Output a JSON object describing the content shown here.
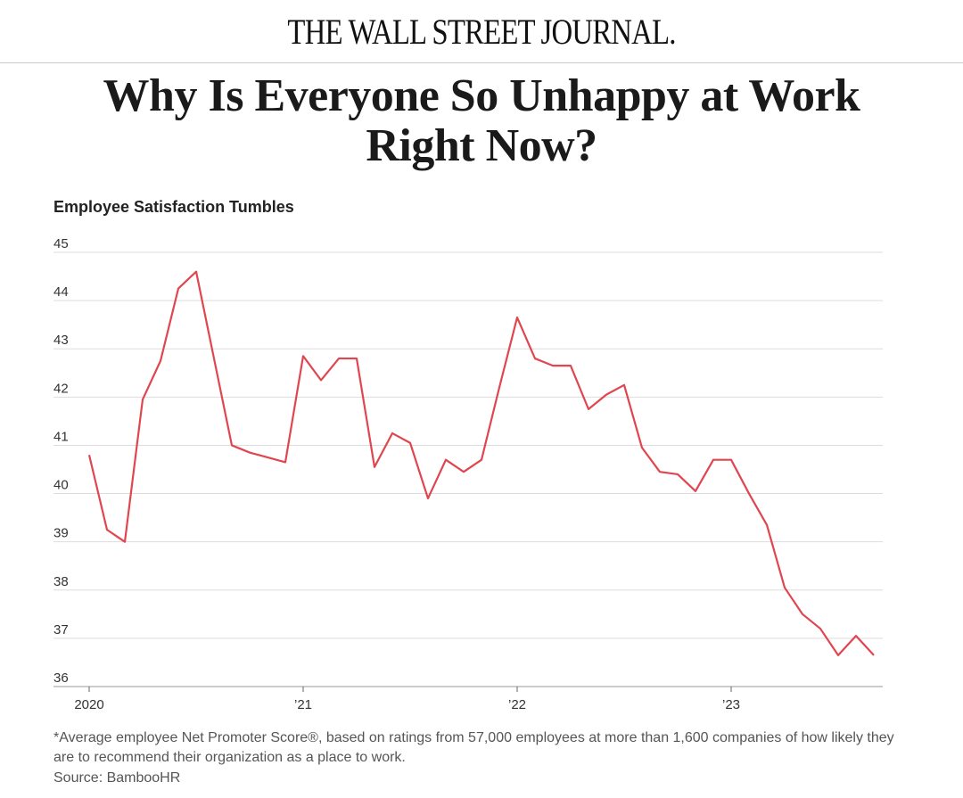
{
  "masthead": "THE WALL STREET JOURNAL.",
  "headline": "Why Is Everyone So Unhappy at Work Right Now?",
  "chart_data": {
    "type": "line",
    "title": "Employee Satisfaction Tumbles",
    "categories": [
      "2020",
      null,
      null,
      null,
      null,
      null,
      null,
      null,
      null,
      null,
      null,
      null,
      "’21",
      null,
      null,
      null,
      null,
      null,
      null,
      null,
      null,
      null,
      null,
      null,
      "’22",
      null,
      null,
      null,
      null,
      null,
      null,
      null,
      null,
      null,
      null,
      null,
      "’23",
      null,
      null,
      null,
      null,
      null,
      null,
      null,
      null
    ],
    "series": [
      {
        "name": "Average employee Net Promoter Score",
        "color": "#e0464f",
        "values": [
          40.8,
          39.25,
          39.0,
          41.95,
          42.75,
          44.25,
          44.6,
          42.8,
          41.0,
          40.85,
          40.75,
          40.65,
          42.85,
          42.35,
          42.8,
          42.8,
          40.55,
          41.25,
          41.05,
          39.9,
          40.7,
          40.45,
          40.7,
          42.2,
          43.65,
          42.8,
          42.65,
          42.65,
          41.75,
          42.05,
          42.25,
          40.95,
          40.45,
          40.4,
          40.05,
          40.7,
          40.7,
          40.0,
          39.35,
          38.05,
          37.5,
          37.2,
          36.65,
          37.05,
          36.65
        ]
      }
    ],
    "ylim": [
      36,
      45
    ],
    "yticks": [
      36,
      37,
      38,
      39,
      40,
      41,
      42,
      43,
      44,
      45
    ],
    "grid": true,
    "footnote": "*Average employee Net Promoter Score®, based on ratings from 57,000 employees at more than 1,600 companies of how likely they are to recommend their organization as a place to work.",
    "source": "Source: BambooHR"
  }
}
